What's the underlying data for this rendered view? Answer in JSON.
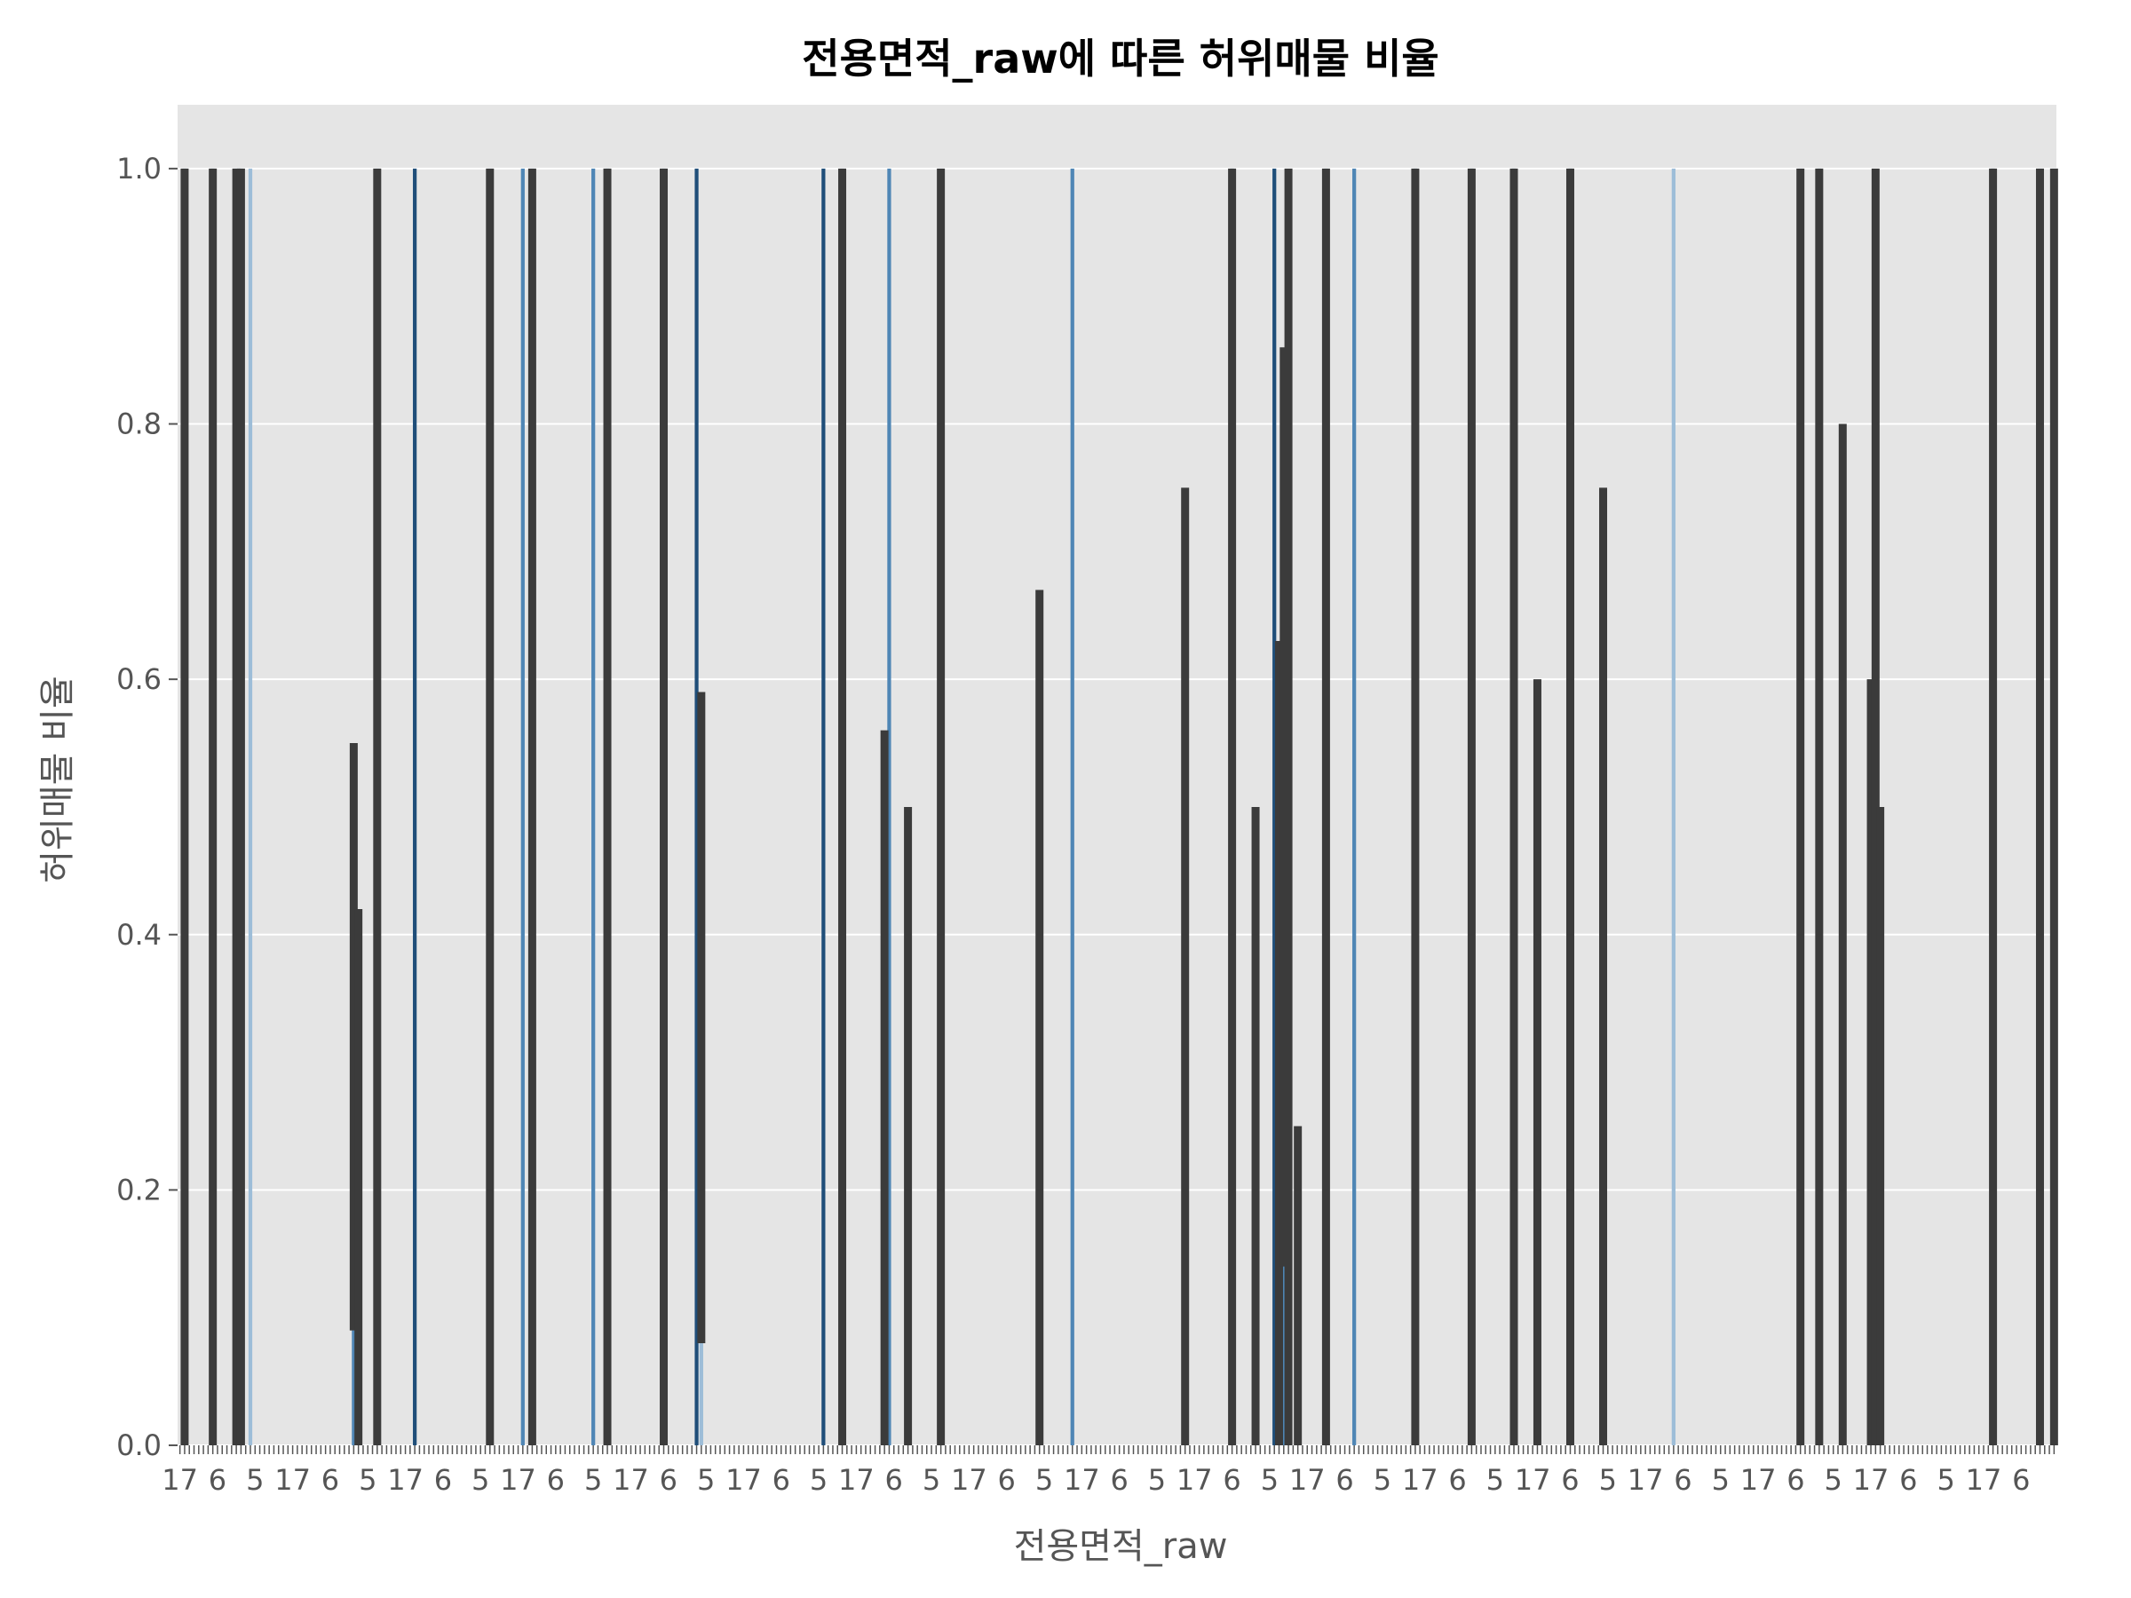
{
  "chart_data": {
    "type": "bar",
    "title": "전용면적_raw에 따른 허위매물 비율",
    "xlabel": "전용면적_raw",
    "ylabel": "허위매물 비율",
    "ylim": [
      0,
      1.05
    ],
    "yticks": [
      "0.0",
      "0.2",
      "0.4",
      "0.6",
      "0.8",
      "1.0"
    ],
    "grid": true,
    "legend": "none",
    "category_count": 400,
    "x_tick_labels_legible": false,
    "x_tick_label_fragments_visible": [
      "17",
      "6",
      "5"
    ],
    "colors": {
      "background": "#e5e5e5",
      "grid": "#ffffff",
      "error_bar": "#3b3b3b",
      "bar_light": "#9dbdd8",
      "bar_mid": "#4f86b5",
      "bar_dark": "#1f4e79"
    },
    "bars": [
      {
        "index": 1,
        "value": 1.0,
        "ci": [
          0.0,
          1.0
        ]
      },
      {
        "index": 7,
        "value": 1.0,
        "ci": [
          0.0,
          1.0
        ]
      },
      {
        "index": 12,
        "value": 1.0,
        "ci": [
          0.0,
          1.0
        ]
      },
      {
        "index": 13,
        "value": 1.0,
        "ci": [
          0.0,
          1.0
        ]
      },
      {
        "index": 15,
        "value": 1.0,
        "ci": [
          1.0,
          1.0
        ]
      },
      {
        "index": 37,
        "value": 0.09,
        "ci": [
          0.09,
          0.55
        ]
      },
      {
        "index": 38,
        "value": 0.09,
        "ci": [
          0.0,
          0.42
        ]
      },
      {
        "index": 42,
        "value": 1.0,
        "ci": [
          0.0,
          1.0
        ]
      },
      {
        "index": 50,
        "value": 1.0,
        "ci": [
          1.0,
          1.0
        ]
      },
      {
        "index": 66,
        "value": 1.0,
        "ci": [
          0.0,
          1.0
        ]
      },
      {
        "index": 73,
        "value": 1.0,
        "ci": [
          1.0,
          1.0
        ]
      },
      {
        "index": 75,
        "value": 1.0,
        "ci": [
          0.0,
          1.0
        ]
      },
      {
        "index": 88,
        "value": 1.0,
        "ci": [
          1.0,
          1.0
        ]
      },
      {
        "index": 91,
        "value": 1.0,
        "ci": [
          0.0,
          1.0
        ]
      },
      {
        "index": 103,
        "value": 1.0,
        "ci": [
          0.0,
          1.0
        ]
      },
      {
        "index": 110,
        "value": 1.0,
        "ci": [
          1.0,
          1.0
        ]
      },
      {
        "index": 111,
        "value": 0.33,
        "ci": [
          0.08,
          0.59
        ]
      },
      {
        "index": 137,
        "value": 1.0,
        "ci": [
          1.0,
          1.0
        ]
      },
      {
        "index": 141,
        "value": 1.0,
        "ci": [
          0.0,
          1.0
        ]
      },
      {
        "index": 150,
        "value": 0.25,
        "ci": [
          0.0,
          0.56
        ]
      },
      {
        "index": 151,
        "value": 1.0,
        "ci": [
          1.0,
          1.0
        ]
      },
      {
        "index": 155,
        "value": 0.17,
        "ci": [
          0.0,
          0.5
        ]
      },
      {
        "index": 162,
        "value": 1.0,
        "ci": [
          0.0,
          1.0
        ]
      },
      {
        "index": 183,
        "value": 0.33,
        "ci": [
          0.0,
          0.67
        ]
      },
      {
        "index": 190,
        "value": 1.0,
        "ci": [
          1.0,
          1.0
        ]
      },
      {
        "index": 214,
        "value": 0.25,
        "ci": [
          0.0,
          0.75
        ]
      },
      {
        "index": 224,
        "value": 1.0,
        "ci": [
          0.0,
          1.0
        ]
      },
      {
        "index": 229,
        "value": 0.25,
        "ci": [
          0.0,
          0.5
        ]
      },
      {
        "index": 233,
        "value": 1.0,
        "ci": [
          1.0,
          1.0
        ]
      },
      {
        "index": 234,
        "value": 0.38,
        "ci": [
          0.0,
          0.63
        ]
      },
      {
        "index": 235,
        "value": 0.5,
        "ci": [
          0.14,
          0.86
        ]
      },
      {
        "index": 236,
        "value": 0.5,
        "ci": [
          0.0,
          1.0
        ]
      },
      {
        "index": 238,
        "value": 0.08,
        "ci": [
          0.0,
          0.25
        ]
      },
      {
        "index": 244,
        "value": 1.0,
        "ci": [
          0.0,
          1.0
        ]
      },
      {
        "index": 250,
        "value": 1.0,
        "ci": [
          1.0,
          1.0
        ]
      },
      {
        "index": 263,
        "value": 1.0,
        "ci": [
          0.0,
          1.0
        ]
      },
      {
        "index": 275,
        "value": 1.0,
        "ci": [
          0.0,
          1.0
        ]
      },
      {
        "index": 284,
        "value": 1.0,
        "ci": [
          0.0,
          1.0
        ]
      },
      {
        "index": 289,
        "value": 0.2,
        "ci": [
          0.0,
          0.6
        ]
      },
      {
        "index": 296,
        "value": 1.0,
        "ci": [
          0.0,
          1.0
        ]
      },
      {
        "index": 303,
        "value": 0.25,
        "ci": [
          0.0,
          0.75
        ]
      },
      {
        "index": 318,
        "value": 1.0,
        "ci": [
          1.0,
          1.0
        ]
      },
      {
        "index": 345,
        "value": 1.0,
        "ci": [
          0.0,
          1.0
        ]
      },
      {
        "index": 349,
        "value": 1.0,
        "ci": [
          0.0,
          1.0
        ]
      },
      {
        "index": 354,
        "value": 0.4,
        "ci": [
          0.0,
          0.8
        ]
      },
      {
        "index": 360,
        "value": 0.2,
        "ci": [
          0.0,
          0.6
        ]
      },
      {
        "index": 361,
        "value": 0.5,
        "ci": [
          0.0,
          1.0
        ]
      },
      {
        "index": 362,
        "value": 0.17,
        "ci": [
          0.0,
          0.5
        ]
      },
      {
        "index": 386,
        "value": 1.0,
        "ci": [
          0.0,
          1.0
        ]
      },
      {
        "index": 396,
        "value": 1.0,
        "ci": [
          0.0,
          1.0
        ]
      },
      {
        "index": 399,
        "value": 1.0,
        "ci": [
          0.0,
          1.0
        ]
      }
    ]
  }
}
